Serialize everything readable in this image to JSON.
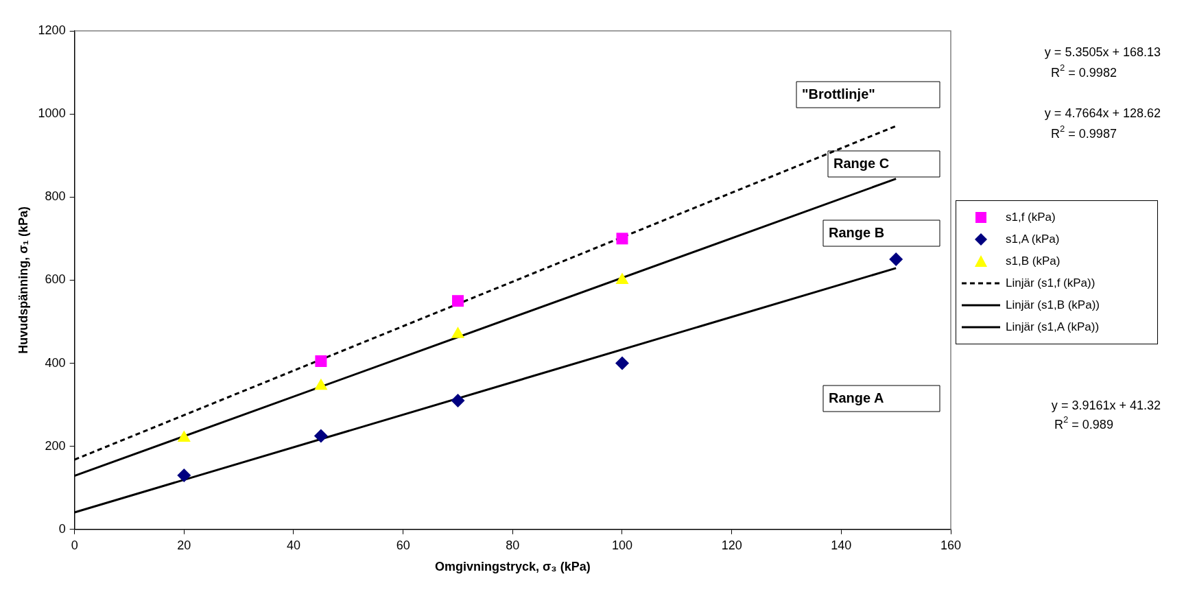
{
  "chart_data": {
    "type": "scatter",
    "xlabel": "Omgivningstryck, σ₃ (kPa)",
    "ylabel": "Huvudspänning, σ₁ (kPa)",
    "xlim": [
      0,
      160
    ],
    "xticks": [
      0,
      20,
      40,
      60,
      80,
      100,
      120,
      140,
      160
    ],
    "ylim": [
      0,
      1200
    ],
    "yticks": [
      0,
      200,
      400,
      600,
      800,
      1000,
      1200
    ],
    "grid": false,
    "legend": "right",
    "series": [
      {
        "name": "s1,f (kPa)",
        "type": "scatter",
        "marker": "square",
        "color": "#ff00ff",
        "x": [
          45,
          70,
          100
        ],
        "values": [
          405,
          550,
          700
        ]
      },
      {
        "name": "s1,A (kPa)",
        "type": "scatter",
        "marker": "diamond",
        "color": "#000080",
        "x": [
          20,
          45,
          70,
          100,
          150
        ],
        "values": [
          130,
          225,
          310,
          400,
          650
        ]
      },
      {
        "name": "s1,B (kPa)",
        "type": "scatter",
        "marker": "triangle",
        "color": "#ffff00",
        "x": [
          20,
          45,
          70,
          100
        ],
        "values": [
          220,
          345,
          470,
          600
        ]
      },
      {
        "name": "Linjär (s1,f (kPa))",
        "type": "line",
        "marker": "none",
        "line_style": "dashed",
        "color": "#000000",
        "x": [
          0,
          150
        ],
        "values": [
          168,
          971
        ]
      },
      {
        "name": "Linjär (s1,B (kPa))",
        "type": "line",
        "marker": "none",
        "line_style": "solid",
        "color": "#000000",
        "x": [
          0,
          150
        ],
        "values": [
          129,
          844
        ]
      },
      {
        "name": "Linjär (s1,A (kPa))",
        "type": "line",
        "marker": "none",
        "line_style": "solid",
        "color": "#000000",
        "x": [
          0,
          150
        ],
        "values": [
          41,
          629
        ]
      }
    ],
    "annotations": [
      "\"Brottlinje\"",
      "Range C",
      "Range B",
      "Range A",
      "y = 5.3505x + 168.13",
      "R$^{2}$ = 0.9982",
      "y = 4.7664x + 128.62",
      "R$^{2}$ = 0.9987",
      "y = 3.9161x + 41.32",
      "R$^{2}$ = 0.989"
    ]
  }
}
